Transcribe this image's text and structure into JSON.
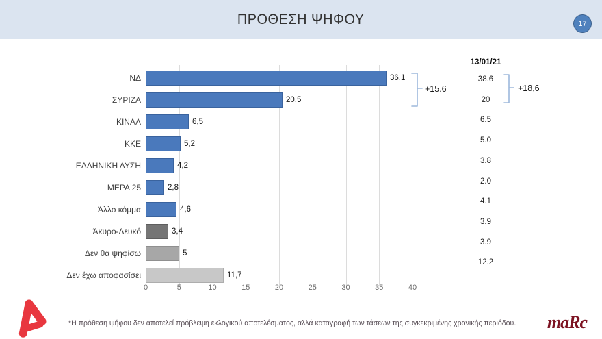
{
  "header": {
    "title": "ΠΡΟΘΕΣΗ ΨΗΦΟΥ",
    "page_number": "17"
  },
  "colors": {
    "header_bg": "#DBE4F0",
    "page_circle": "#4F81BD",
    "bar_blue": "#4A79BC",
    "bar_blue_border": "#3A639E",
    "bar_dark_gray": "#757575",
    "bar_dark_gray_border": "#5E5E5E",
    "bar_mid_gray": "#A7A7A7",
    "bar_mid_gray_border": "#8F8F8F",
    "bar_light_gray": "#C8C8C8",
    "bar_light_gray_border": "#ADADAD",
    "gridline": "#DCDCDC",
    "bracket": "#9DB8DC",
    "alpha_red": "#E8373F",
    "marc_maroon": "#7D1322"
  },
  "chart_data": {
    "type": "bar",
    "orientation": "horizontal",
    "title": "ΠΡΟΘΕΣΗ ΨΗΦΟΥ",
    "categories": [
      "ΝΔ",
      "ΣΥΡΙΖΑ",
      "ΚΙΝΑΛ",
      "ΚΚΕ",
      "ΕΛΛΗΝΙΚΗ ΛΥΣΗ",
      "ΜΕΡΑ 25",
      "Άλλο κόμμα",
      "Άκυρο-Λευκό",
      "Δεν θα ψηφίσω",
      "Δεν έχω αποφασίσει"
    ],
    "values": [
      36.1,
      20.5,
      6.5,
      5.2,
      4.2,
      2.8,
      4.6,
      3.4,
      5,
      11.7
    ],
    "value_labels": [
      "36,1",
      "20,5",
      "6,5",
      "5,2",
      "4,2",
      "2,8",
      "4,6",
      "3,4",
      "5",
      "11,7"
    ],
    "color_keys": [
      "blue",
      "blue",
      "blue",
      "blue",
      "blue",
      "blue",
      "blue",
      "dark_gray",
      "mid_gray",
      "light_gray"
    ],
    "xlim": [
      0,
      40
    ],
    "x_ticks": [
      "0",
      "5",
      "10",
      "15",
      "20",
      "25",
      "30",
      "35",
      "40"
    ],
    "grid": "vertical",
    "previous_poll": {
      "date": "13/01/21",
      "values": [
        "38.6",
        "20",
        "6.5",
        "5.0",
        "3.8",
        "2.0",
        "4.1",
        "3.9",
        "3.9",
        "12.2"
      ]
    },
    "annotations": {
      "current_lead": "+15.6",
      "previous_lead": "+18,6"
    }
  },
  "footer": {
    "note": "*Η πρόθεση ψήφου δεν αποτελεί πρόβλεψη εκλογικού αποτελέσματος, αλλά καταγραφή των τάσεων της συγκεκριμένης χρονικής περιόδου.",
    "brand": "maRc"
  }
}
